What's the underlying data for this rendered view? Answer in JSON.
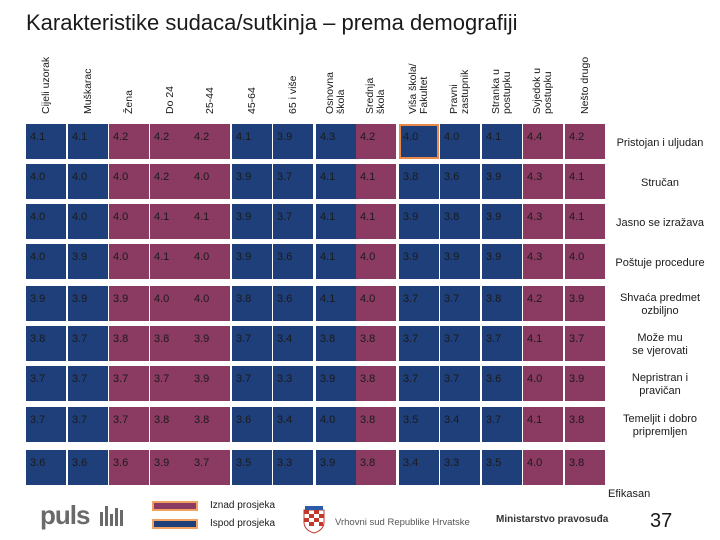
{
  "title": "Karakteristike sudaca/sutkinja – prema demografiji",
  "colors": {
    "above_average": "#8b3a62",
    "below_average": "#1f3f7a",
    "highlight_border": "#e8894a",
    "legend_above_border": "#f0a060"
  },
  "columns": [
    "Cijeli uzorak",
    "Muškarac",
    "Žena",
    "Do 24",
    "25-44",
    "45-64",
    "65 i više",
    "Osnovna\nškola",
    "Srednja\nškola",
    "Viša škola/\nFakultet",
    "Pravni\nzastupnik",
    "Stranka u\npostupku",
    "Svjedok u\npostupku",
    "Nešto drugo"
  ],
  "chart_data": {
    "type": "heatmap",
    "title": "Karakteristike sudaca/sutkinja – prema demografiji",
    "columns": [
      "Cijeli uzorak",
      "Muškarac",
      "Žena",
      "Do 24",
      "25-44",
      "45-64",
      "65 i više",
      "Osnovna škola",
      "Srednja škola",
      "Viša škola/ Fakultet",
      "Pravni zastupnik",
      "Stranka u postupku",
      "Svjedok u postupku",
      "Nešto drugo"
    ],
    "rows": [
      {
        "label": "Pristojan i uljudan",
        "values": [
          "4.1",
          "4.1",
          "4.2",
          "4.2",
          "4.2",
          "4.1",
          "3.9",
          "4.3",
          "4.2",
          "4.0",
          "4.0",
          "4.1",
          "4.4",
          "4.2"
        ],
        "above": [
          false,
          false,
          true,
          true,
          true,
          false,
          false,
          false,
          true,
          false,
          false,
          false,
          true,
          true
        ]
      },
      {
        "label": "Stručan",
        "values": [
          "4.0",
          "4.0",
          "4.0",
          "4.2",
          "4.0",
          "3.9",
          "3.7",
          "4.1",
          "4.1",
          "3.8",
          "3.6",
          "3.9",
          "4.3",
          "4.1"
        ],
        "above": [
          false,
          false,
          true,
          true,
          true,
          false,
          false,
          false,
          true,
          false,
          false,
          false,
          true,
          true
        ]
      },
      {
        "label": "Jasno se izražava",
        "values": [
          "4.0",
          "4.0",
          "4.0",
          "4.1",
          "4.1",
          "3.9",
          "3.7",
          "4.1",
          "4.1",
          "3.9",
          "3.8",
          "3.9",
          "4.3",
          "4.1"
        ],
        "above": [
          false,
          false,
          true,
          true,
          true,
          false,
          false,
          false,
          true,
          false,
          false,
          false,
          true,
          true
        ]
      },
      {
        "label": "Poštuje procedure",
        "values": [
          "4.0",
          "3.9",
          "4.0",
          "4.1",
          "4.0",
          "3.9",
          "3.6",
          "4.1",
          "4.0",
          "3.9",
          "3.9",
          "3.9",
          "4.3",
          "4.0"
        ],
        "above": [
          false,
          false,
          true,
          true,
          true,
          false,
          false,
          false,
          true,
          false,
          false,
          false,
          true,
          true
        ]
      },
      {
        "label": "Shvaća predmet\nozbiljno",
        "values": [
          "3.9",
          "3.9",
          "3.9",
          "4.0",
          "4.0",
          "3.8",
          "3.6",
          "4.1",
          "4.0",
          "3.7",
          "3.7",
          "3.8",
          "4.2",
          "3.9"
        ],
        "above": [
          false,
          false,
          true,
          true,
          true,
          false,
          false,
          false,
          true,
          false,
          false,
          false,
          true,
          true
        ]
      },
      {
        "label": "Može mu\nse vjerovati",
        "values": [
          "3.8",
          "3.7",
          "3.8",
          "3.8",
          "3.9",
          "3.7",
          "3.4",
          "3.8",
          "3.8",
          "3.7",
          "3.7",
          "3.7",
          "4.1",
          "3.7"
        ],
        "above": [
          false,
          false,
          true,
          true,
          true,
          false,
          false,
          false,
          true,
          false,
          false,
          false,
          true,
          true
        ]
      },
      {
        "label": "Nepristran i\npravičan",
        "values": [
          "3.7",
          "3.7",
          "3.7",
          "3.7",
          "3.9",
          "3.7",
          "3.3",
          "3.9",
          "3.8",
          "3.7",
          "3.7",
          "3.6",
          "4.0",
          "3.9"
        ],
        "above": [
          false,
          false,
          true,
          true,
          true,
          false,
          false,
          false,
          true,
          false,
          false,
          false,
          true,
          true
        ]
      },
      {
        "label": "Temeljit i dobro\npripremljen",
        "values": [
          "3.7",
          "3.7",
          "3.7",
          "3.8",
          "3.8",
          "3.6",
          "3.4",
          "4.0",
          "3.8",
          "3.5",
          "3.4",
          "3.7",
          "4.1",
          "3.8"
        ],
        "above": [
          false,
          false,
          true,
          true,
          true,
          false,
          false,
          false,
          true,
          false,
          false,
          false,
          true,
          true
        ]
      },
      {
        "label": "Efikasan",
        "values": [
          "3.6",
          "3.6",
          "3.6",
          "3.9",
          "3.7",
          "3.5",
          "3.3",
          "3.9",
          "3.8",
          "3.4",
          "3.3",
          "3.5",
          "4.0",
          "3.8"
        ],
        "above": [
          false,
          false,
          true,
          true,
          true,
          false,
          false,
          false,
          true,
          false,
          false,
          false,
          true,
          true
        ]
      }
    ]
  },
  "legend": {
    "above": "Iznad prosjeka",
    "below": "Ispod prosjeka"
  },
  "footer": {
    "brand": "puls",
    "government": "Vrhovni sud Republike Hrvatske",
    "ministry": "Ministarstvo pravosuđa",
    "page_number": "37"
  }
}
